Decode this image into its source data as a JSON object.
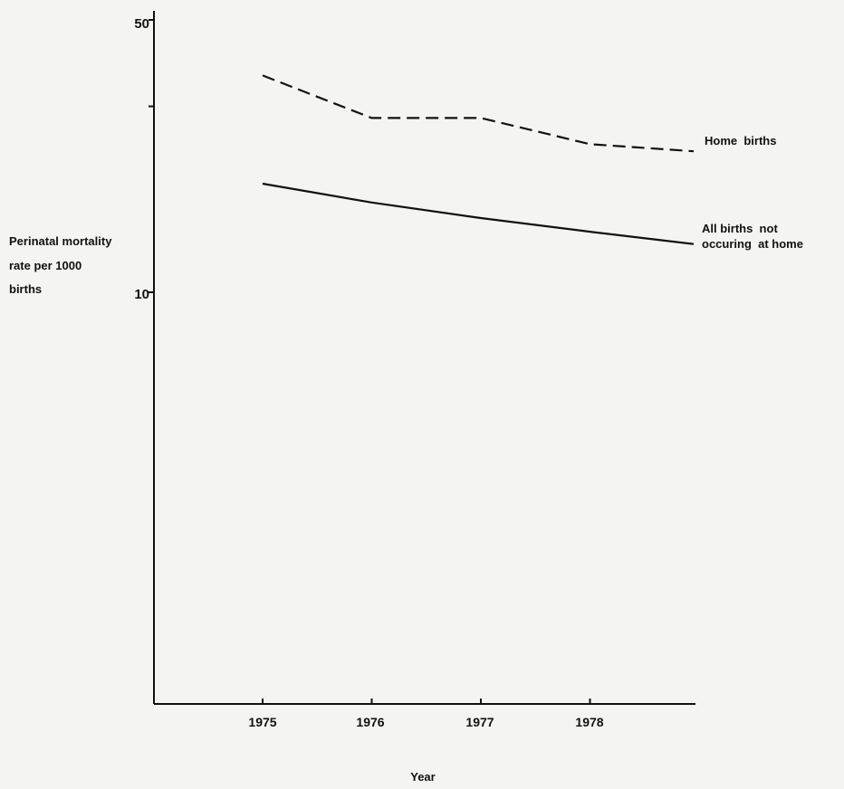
{
  "chart_data": {
    "type": "line",
    "title": "",
    "xlabel": "Year",
    "ylabel": [
      "Perinatal mortality",
      "rate per 1000",
      "births"
    ],
    "x": [
      1975,
      1976,
      1977,
      1978,
      1979
    ],
    "x_tick_labels": [
      "1975",
      "1976",
      "1977",
      "1978"
    ],
    "y_scale": "log",
    "ylim": [
      1,
      50
    ],
    "y_tick_labels": [
      "50",
      "10"
    ],
    "y_ticks": [
      50,
      30,
      10
    ],
    "grid": false,
    "series": [
      {
        "name": "Home births",
        "label_lines": [
          "Home  births"
        ],
        "style": "dashed",
        "color": "#111111",
        "values": [
          36,
          28,
          28,
          24,
          23
        ]
      },
      {
        "name": "All births not occuring at home",
        "label_lines": [
          "All births  not",
          "occuring  at home"
        ],
        "style": "solid",
        "color": "#111111",
        "values": [
          19,
          17,
          15.5,
          14.3,
          13.3
        ]
      }
    ]
  }
}
